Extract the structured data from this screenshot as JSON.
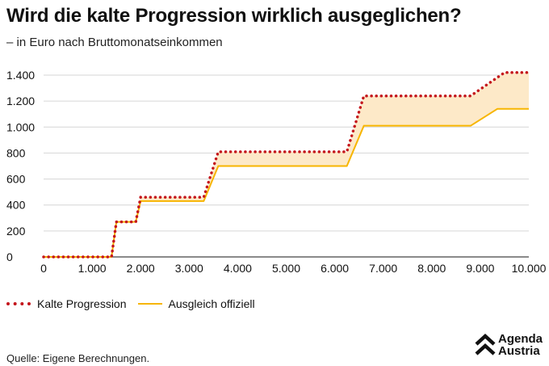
{
  "header": {
    "title": "Wird die kalte Progression wirklich ausgeglichen?",
    "subtitle": "– in Euro nach Bruttomonatseinkommen"
  },
  "legend": {
    "items": [
      {
        "label": "Kalte Progression",
        "color": "#c4161c",
        "style": "dotted"
      },
      {
        "label": "Ausgleich offiziell",
        "color": "#f7b500",
        "style": "solid"
      }
    ]
  },
  "footer": {
    "source": "Quelle: Eigene Berechnungen.",
    "logo_line1": "Agenda",
    "logo_line2": "Austria"
  },
  "colors": {
    "progression": "#c4161c",
    "ausgleich": "#f7b500",
    "fill": "#fde9c8",
    "grid": "#d6d6d6"
  },
  "chart_data": {
    "type": "line",
    "xlim": [
      0,
      10000
    ],
    "ylim": [
      0,
      1400
    ],
    "x_ticks": [
      0,
      1000,
      2000,
      3000,
      4000,
      5000,
      6000,
      7000,
      8000,
      9000,
      10000
    ],
    "x_tick_labels": [
      "0",
      "1.000",
      "2.000",
      "3.000",
      "4.000",
      "5.000",
      "6.000",
      "7.000",
      "8.000",
      "9.000",
      "10.000"
    ],
    "y_ticks": [
      0,
      200,
      400,
      600,
      800,
      1000,
      1200,
      1400
    ],
    "y_tick_labels": [
      "0",
      "200",
      "400",
      "600",
      "800",
      "1.000",
      "1.200",
      "1.400"
    ],
    "grid": "horizontal",
    "legend_position": "bottom-left",
    "series": [
      {
        "name": "Kalte Progression",
        "x": [
          0,
          1400,
          1500,
          1900,
          2000,
          3300,
          3600,
          6250,
          6600,
          8800,
          9500,
          10000
        ],
        "values": [
          0,
          0,
          270,
          270,
          460,
          460,
          810,
          810,
          1240,
          1240,
          1420,
          1420
        ]
      },
      {
        "name": "Ausgleich offiziell",
        "x": [
          0,
          1400,
          1500,
          1900,
          2000,
          3300,
          3600,
          6250,
          6600,
          8800,
          9350,
          10000
        ],
        "values": [
          0,
          0,
          270,
          270,
          430,
          430,
          700,
          700,
          1010,
          1010,
          1140,
          1140
        ]
      }
    ]
  }
}
